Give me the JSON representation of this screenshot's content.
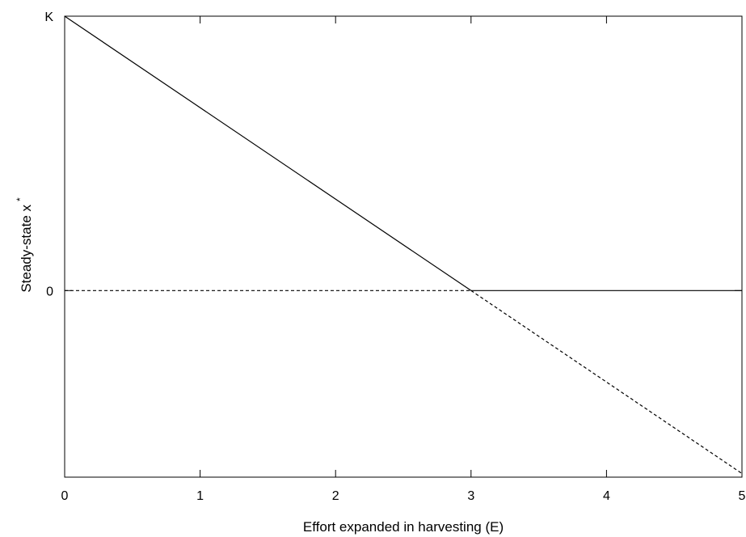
{
  "chart_data": {
    "type": "line",
    "title": "",
    "xlabel": "Effort expanded in harvesting (E)",
    "ylabel": "Steady-state x",
    "ylabel_superscript": "*",
    "xlim": [
      0,
      5
    ],
    "ylim": [
      -0.68,
      1.0
    ],
    "x_ticks": [
      {
        "value": 0,
        "label": "0"
      },
      {
        "value": 1,
        "label": "1"
      },
      {
        "value": 2,
        "label": "2"
      },
      {
        "value": 3,
        "label": "3"
      },
      {
        "value": 4,
        "label": "4"
      },
      {
        "value": 5,
        "label": "5"
      }
    ],
    "y_ticks": [
      {
        "value": 1,
        "label": "K"
      },
      {
        "value": 0,
        "label": "0"
      }
    ],
    "grid": false,
    "legend": "none",
    "series": [
      {
        "style": "solid",
        "color": "#000000",
        "points": [
          [
            0,
            1
          ],
          [
            3,
            0
          ]
        ]
      },
      {
        "style": "solid",
        "color": "#000000",
        "points": [
          [
            3,
            0
          ],
          [
            5,
            0
          ]
        ]
      },
      {
        "style": "dashed",
        "color": "#000000",
        "points": [
          [
            0,
            0
          ],
          [
            3,
            0
          ]
        ]
      },
      {
        "style": "dashed",
        "color": "#000000",
        "points": [
          [
            3,
            0
          ],
          [
            5,
            -0.6667
          ]
        ]
      }
    ]
  }
}
